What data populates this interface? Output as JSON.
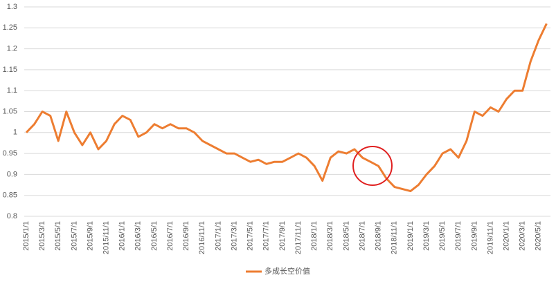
{
  "chart_data": {
    "type": "line",
    "categories": [
      "2015/1/1",
      null,
      "2015/3/1",
      null,
      "2015/5/1",
      null,
      "2015/7/1",
      null,
      "2015/9/1",
      null,
      "2015/11/1",
      null,
      "2016/1/1",
      null,
      "2016/3/1",
      null,
      "2016/5/1",
      null,
      "2016/7/1",
      null,
      "2016/9/1",
      null,
      "2016/11/1",
      null,
      "2017/1/1",
      null,
      "2017/3/1",
      null,
      "2017/5/1",
      null,
      "2017/7/1",
      null,
      "2017/9/1",
      null,
      "2017/11/1",
      null,
      "2018/1/1",
      null,
      "2018/3/1",
      null,
      "2018/5/1",
      null,
      "2018/7/1",
      null,
      "2018/9/1",
      null,
      "2018/11/1",
      null,
      "2019/1/1",
      null,
      "2019/3/1",
      null,
      "2019/5/1",
      null,
      "2019/7/1",
      null,
      "2019/9/1",
      null,
      "2019/11/1",
      null,
      "2020/1/1",
      null,
      "2020/3/1",
      null,
      "2020/5/1",
      null
    ],
    "series": [
      {
        "name": "多成长空价值",
        "color": "#ed7d31",
        "values": [
          1.0,
          1.02,
          1.05,
          1.04,
          0.98,
          1.05,
          1.0,
          0.97,
          1.0,
          0.96,
          0.98,
          1.02,
          1.04,
          1.03,
          0.99,
          1.0,
          1.02,
          1.01,
          1.02,
          1.01,
          1.01,
          1.0,
          0.98,
          0.97,
          0.96,
          0.95,
          0.95,
          0.94,
          0.93,
          0.935,
          0.925,
          0.93,
          0.93,
          0.94,
          0.95,
          0.94,
          0.92,
          0.885,
          0.94,
          0.955,
          0.95,
          0.96,
          0.94,
          0.93,
          0.92,
          0.89,
          0.87,
          0.865,
          0.86,
          0.875,
          0.9,
          0.92,
          0.95,
          0.96,
          0.94,
          0.98,
          1.05,
          1.04,
          1.06,
          1.05,
          1.08,
          1.1,
          1.1,
          1.17,
          1.22,
          1.26
        ]
      }
    ],
    "ylim": [
      0.8,
      1.3
    ],
    "yticks": [
      0.8,
      0.85,
      0.9,
      0.95,
      1,
      1.05,
      1.1,
      1.15,
      1.2,
      1.25,
      1.3
    ],
    "grid": true,
    "legend": "bottom"
  }
}
